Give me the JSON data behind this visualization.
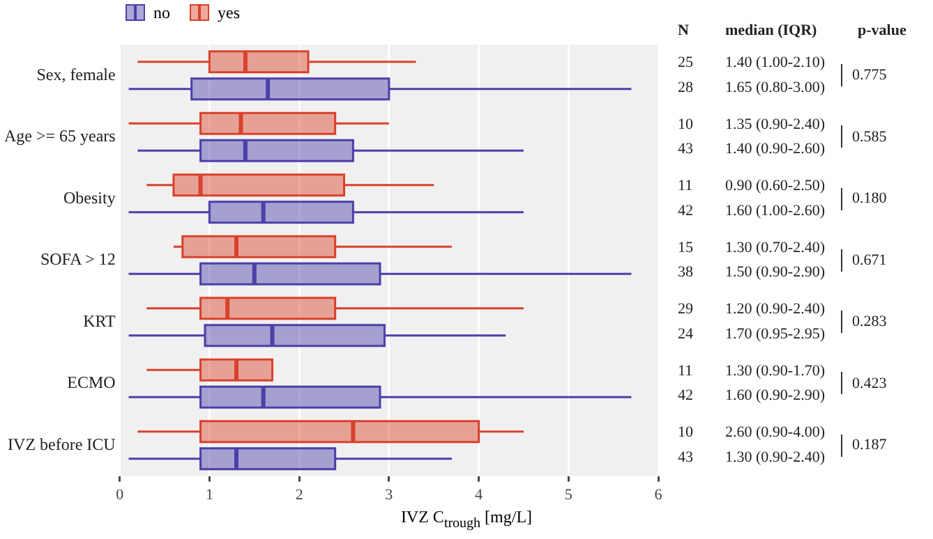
{
  "chart_data": {
    "type": "box",
    "orientation": "horizontal",
    "xlabel": "IVZ C$_{trough}$ [mg/L]",
    "categories": [
      "Sex, female",
      "Age >= 65 years",
      "Obesity",
      "SOFA > 12",
      "KRT",
      "ECMO",
      "IVZ before ICU"
    ],
    "xlim": [
      0,
      6
    ],
    "xticks": [
      0,
      1,
      2,
      3,
      4,
      5,
      6
    ],
    "grid": "x",
    "legend": "top left",
    "series": [
      {
        "name": "no",
        "color": "#4b3fa8",
        "boxes": [
          {
            "low": 0.1,
            "q1": 0.8,
            "median": 1.65,
            "q3": 3.0,
            "high": 5.7
          },
          {
            "low": 0.2,
            "q1": 0.9,
            "median": 1.4,
            "q3": 2.6,
            "high": 4.5
          },
          {
            "low": 0.1,
            "q1": 1.0,
            "median": 1.6,
            "q3": 2.6,
            "high": 4.5
          },
          {
            "low": 0.1,
            "q1": 0.9,
            "median": 1.5,
            "q3": 2.9,
            "high": 5.7
          },
          {
            "low": 0.1,
            "q1": 0.95,
            "median": 1.7,
            "q3": 2.95,
            "high": 4.3
          },
          {
            "low": 0.1,
            "q1": 0.9,
            "median": 1.6,
            "q3": 2.9,
            "high": 5.7
          },
          {
            "low": 0.1,
            "q1": 0.9,
            "median": 1.3,
            "q3": 2.4,
            "high": 3.7
          }
        ]
      },
      {
        "name": "yes",
        "color": "#d9412b",
        "boxes": [
          {
            "low": 0.2,
            "q1": 1.0,
            "median": 1.4,
            "q3": 2.1,
            "high": 3.3
          },
          {
            "low": 0.1,
            "q1": 0.9,
            "median": 1.35,
            "q3": 2.4,
            "high": 3.0
          },
          {
            "low": 0.3,
            "q1": 0.6,
            "median": 0.9,
            "q3": 2.5,
            "high": 3.5
          },
          {
            "low": 0.6,
            "q1": 0.7,
            "median": 1.3,
            "q3": 2.4,
            "high": 3.7
          },
          {
            "low": 0.3,
            "q1": 0.9,
            "median": 1.2,
            "q3": 2.4,
            "high": 4.5
          },
          {
            "low": 0.3,
            "q1": 0.9,
            "median": 1.3,
            "q3": 1.7,
            "high": 1.7
          },
          {
            "low": 0.2,
            "q1": 0.9,
            "median": 2.6,
            "q3": 4.0,
            "high": 4.5
          }
        ]
      }
    ],
    "annotations": [
      "N",
      "median (IQR)",
      "p-value",
      "25",
      "1.40 (1.00-2.10)",
      "28",
      "1.65 (0.80-3.00)",
      "0.775",
      "10",
      "1.35 (0.90-2.40)",
      "43",
      "1.40 (0.90-2.60)",
      "0.585",
      "11",
      "0.90 (0.60-2.50)",
      "42",
      "1.60 (1.00-2.60)",
      "0.180",
      "15",
      "1.30 (0.70-2.40)",
      "38",
      "1.50 (0.90-2.90)",
      "0.671",
      "29",
      "1.20 (0.90-2.40)",
      "24",
      "1.70 (0.95-2.95)",
      "0.283",
      "11",
      "1.30 (0.90-1.70)",
      "42",
      "1.60 (0.90-2.90)",
      "0.423",
      "10",
      "2.60 (0.90-4.00)",
      "43",
      "1.30 (0.90-2.40)",
      "0.187"
    ]
  }
}
